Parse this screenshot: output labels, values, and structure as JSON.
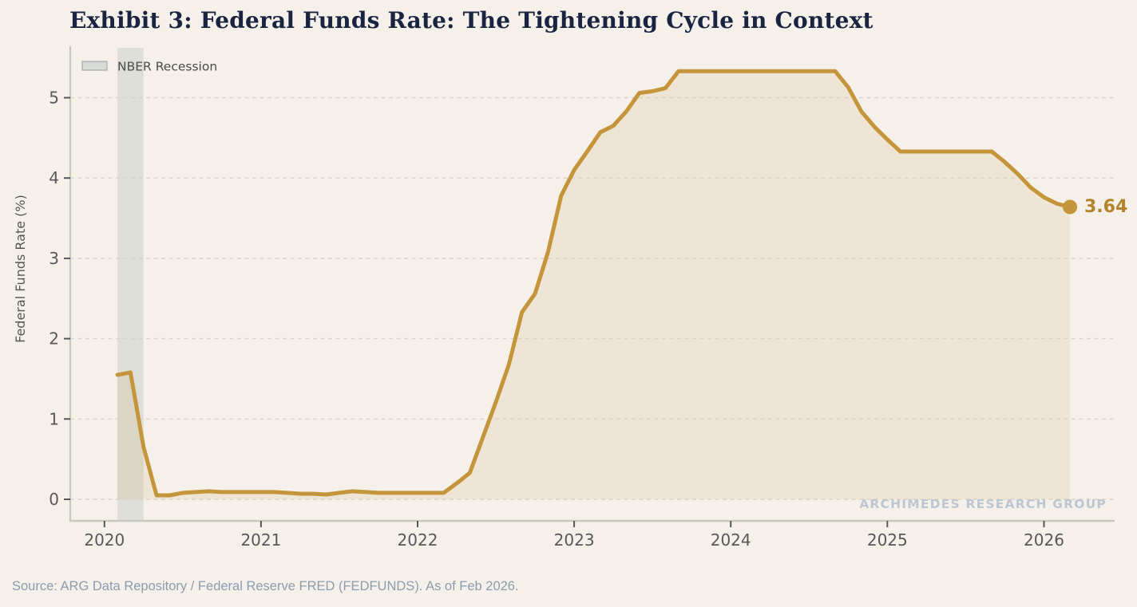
{
  "title": "Exhibit 3: Federal Funds Rate: The Tightening Cycle in Context",
  "source_note": "Source: ARG Data Repository / Federal Reserve FRED (FEDFUNDS). As of Feb 2026.",
  "watermark": "ARCHIMEDES RESEARCH GROUP",
  "legend": {
    "recession_label": "NBER Recession"
  },
  "colors": {
    "background": "#F5F1EA",
    "title": "#1A2440",
    "line": "#C5953B",
    "area_fill": "rgba(197,148,58,0.12)",
    "end_label": "#B2842B",
    "recession_band": "#DFDFDA",
    "grid": "#D8D3C6",
    "spine": "#C8C9BB",
    "tick": "#55565A",
    "tick_label": "#58585A",
    "axis_title": "#555555",
    "legend_text": "#4B4B4B",
    "legend_swatch_fill": "#D8DAD7",
    "legend_swatch_stroke": "#A6A8A5",
    "watermark": "#BDC6D3",
    "source": "#8D9BAE"
  },
  "chart_data": {
    "type": "area",
    "title": "Exhibit 3: Federal Funds Rate: The Tightening Cycle in Context",
    "xlabel": "",
    "ylabel": "Federal Funds Rate (%)",
    "x_tick_labels": [
      "2020",
      "2021",
      "2022",
      "2023",
      "2024",
      "2025",
      "2026"
    ],
    "y_ticks": [
      0,
      1,
      2,
      3,
      4,
      5
    ],
    "y_tick_labels": [
      "0",
      "1",
      "2",
      "3",
      "4",
      "5"
    ],
    "ylim": [
      -0.28,
      5.64
    ],
    "grid": "horizontal-dashed",
    "legend_position": "upper-left",
    "frequency": "monthly",
    "start_month": "2020-01",
    "values": [
      1.55,
      1.58,
      0.65,
      0.05,
      0.05,
      0.08,
      0.09,
      0.1,
      0.09,
      0.09,
      0.09,
      0.09,
      0.09,
      0.08,
      0.07,
      0.07,
      0.06,
      0.08,
      0.1,
      0.09,
      0.08,
      0.08,
      0.08,
      0.08,
      0.08,
      0.08,
      0.2,
      0.33,
      0.77,
      1.21,
      1.68,
      2.33,
      2.56,
      3.08,
      3.78,
      4.1,
      4.33,
      4.57,
      4.65,
      4.83,
      5.06,
      5.08,
      5.12,
      5.33,
      5.33,
      5.33,
      5.33,
      5.33,
      5.33,
      5.33,
      5.33,
      5.33,
      5.33,
      5.33,
      5.33,
      5.33,
      5.13,
      4.83,
      4.64,
      4.48,
      4.33,
      4.33,
      4.33,
      4.33,
      4.33,
      4.33,
      4.33,
      4.33,
      4.2,
      4.05,
      3.88,
      3.76,
      3.68,
      3.64
    ],
    "recession_band": {
      "from": "2020-02",
      "to": "2020-04",
      "label": "NBER Recession"
    },
    "last_point": {
      "month": "2026-02",
      "value": 3.64,
      "label": "3.64"
    }
  }
}
